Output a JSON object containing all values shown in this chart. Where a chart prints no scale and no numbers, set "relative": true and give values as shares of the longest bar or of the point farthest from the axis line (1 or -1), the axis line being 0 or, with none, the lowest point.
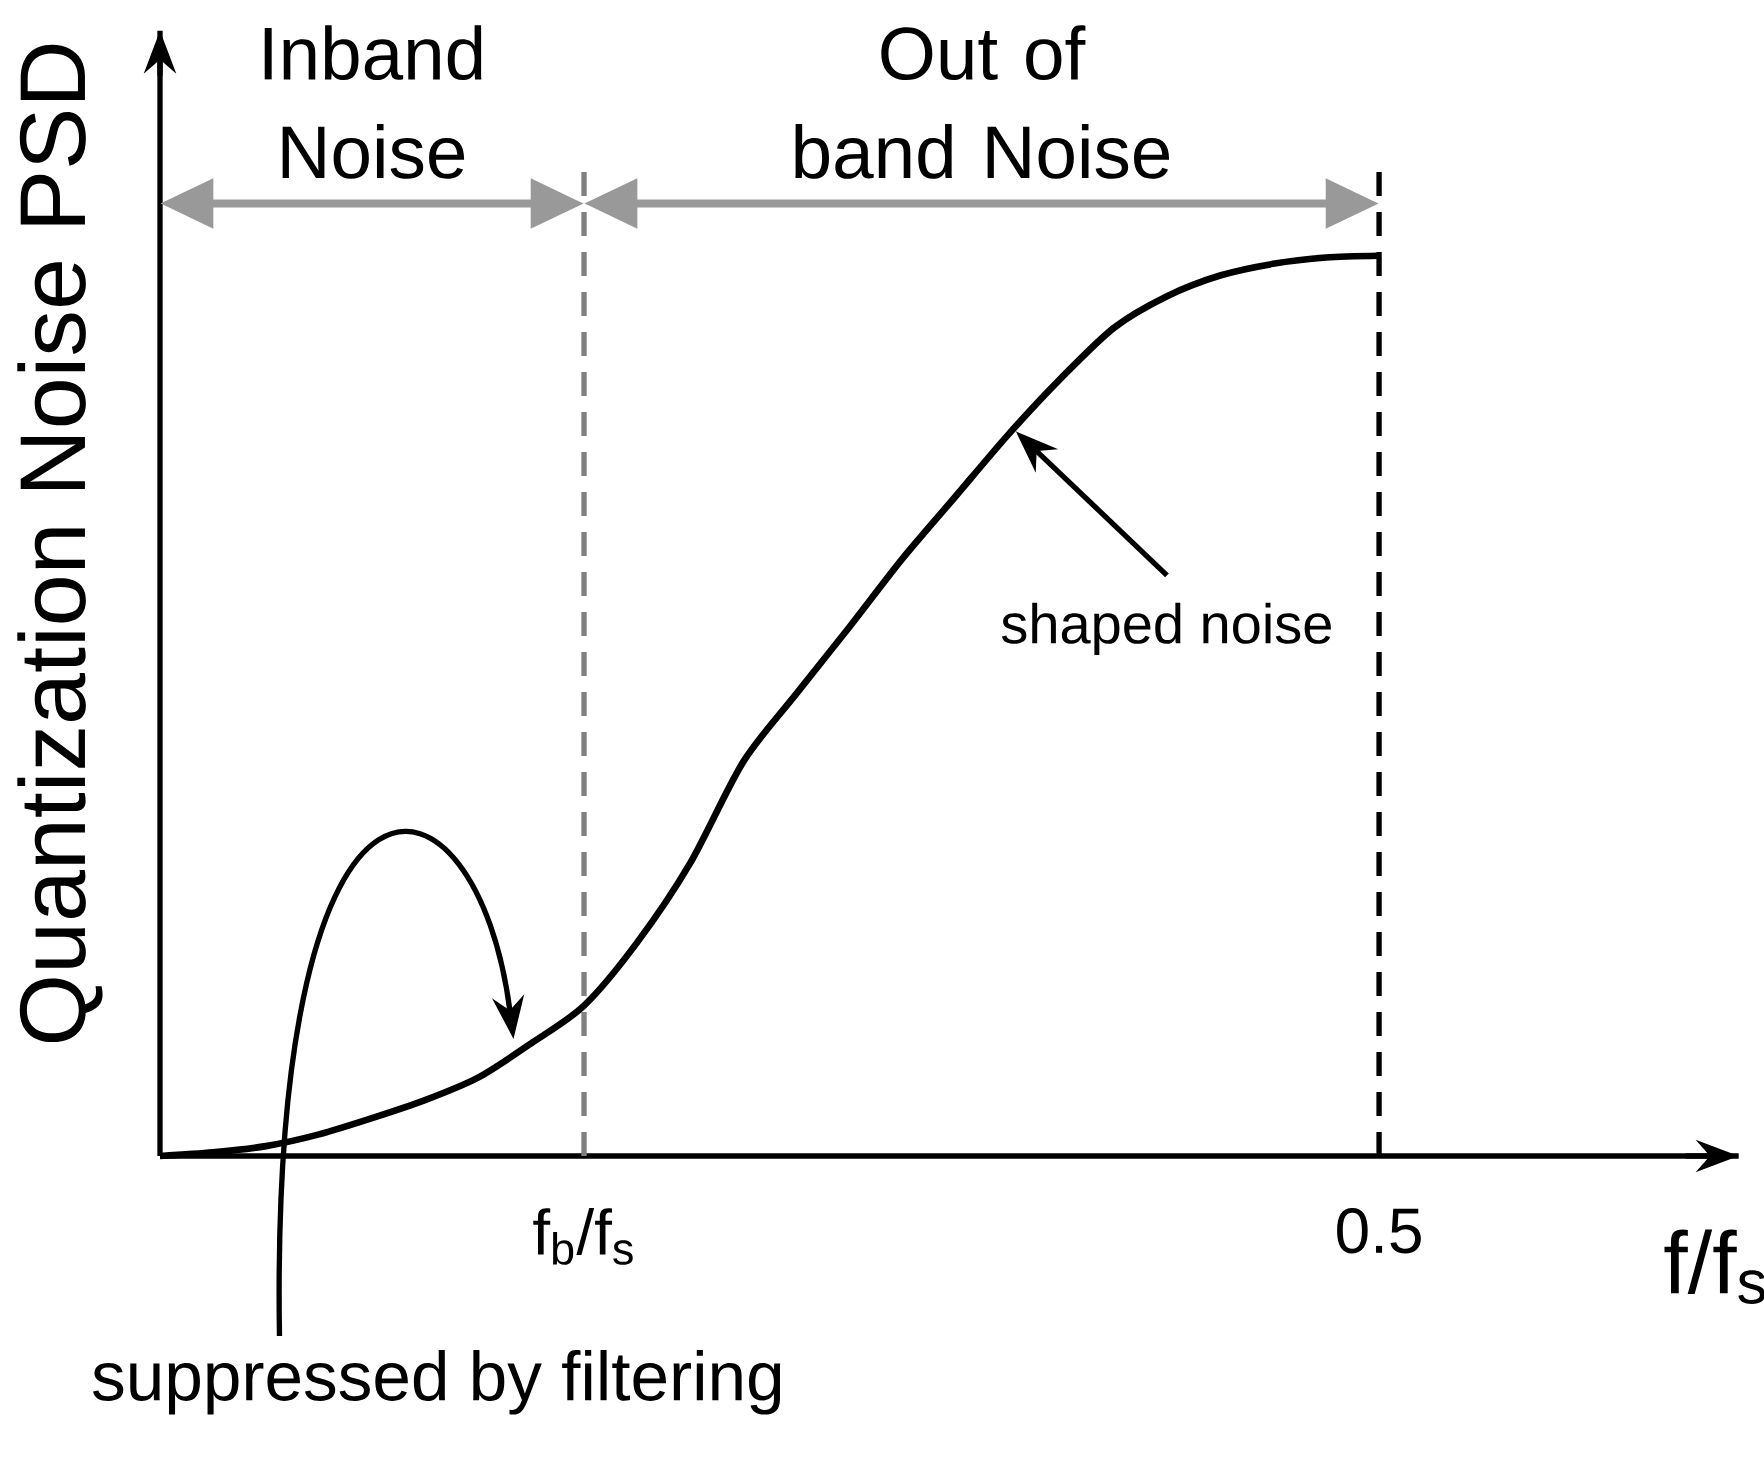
{
  "chart_data": {
    "type": "line",
    "relative": true,
    "xlabel": "f/f$_{s}$",
    "ylabel": "Quantization Noise PSD",
    "categories": [
      null,
      null,
      null,
      null,
      null,
      null,
      null,
      null,
      "f$_{b}$/f$_{s}$",
      null,
      null,
      null,
      null,
      null,
      null,
      null,
      null,
      null,
      null,
      null,
      null,
      null,
      null,
      "0.5"
    ],
    "values": [
      0,
      0.004,
      0.011,
      0.024,
      0.042,
      0.062,
      0.087,
      0.125,
      0.167,
      0.237,
      0.325,
      0.4375,
      0.513,
      0.587,
      0.663,
      0.732,
      0.801,
      0.864,
      0.92,
      0.955,
      0.978,
      0.991,
      0.998,
      1
    ],
    "color": "#000000",
    "marker": "none",
    "line_style": "solid",
    "ref_lines": [
      {
        "axis": "x",
        "value": "f$_{b}$/f$_{s}$",
        "color": "#808080",
        "line_style": "dashed"
      },
      {
        "axis": "x",
        "value": "0.5",
        "color": "#000000",
        "line_style": "dashed"
      }
    ],
    "annotations": [
      "Inband Noise",
      "Out of band Noise",
      "shaped noise",
      "suppressed by filtering"
    ]
  }
}
